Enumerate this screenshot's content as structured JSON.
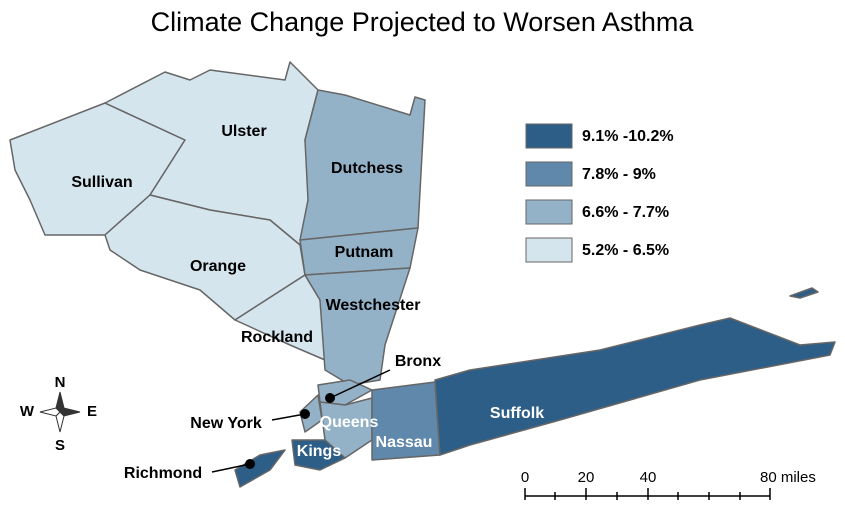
{
  "title": "Climate Change Projected to Worsen Asthma",
  "legend": [
    {
      "label": "9.1% -10.2%",
      "color": "#2d5e87"
    },
    {
      "label": "7.8% - 9%",
      "color": "#5f88aa"
    },
    {
      "label": "6.6% - 7.7%",
      "color": "#94b2c7"
    },
    {
      "label": "5.2% - 6.5%",
      "color": "#d5e5ee"
    }
  ],
  "counties": [
    {
      "name": "Sullivan",
      "color": "#d5e5ee"
    },
    {
      "name": "Ulster",
      "color": "#d5e5ee"
    },
    {
      "name": "Orange",
      "color": "#d5e5ee"
    },
    {
      "name": "Rockland",
      "color": "#d5e5ee"
    },
    {
      "name": "Dutchess",
      "color": "#94b2c7"
    },
    {
      "name": "Putnam",
      "color": "#94b2c7"
    },
    {
      "name": "Westchester",
      "color": "#94b2c7"
    },
    {
      "name": "Bronx",
      "color": "#94b2c7"
    },
    {
      "name": "New York",
      "color": "#94b2c7"
    },
    {
      "name": "Queens",
      "color": "#94b2c7"
    },
    {
      "name": "Kings",
      "color": "#2d5e87"
    },
    {
      "name": "Nassau",
      "color": "#5f88aa"
    },
    {
      "name": "Suffolk",
      "color": "#2d5e87"
    },
    {
      "name": "Richmond",
      "color": "#2d5e87"
    }
  ],
  "compass": {
    "north": "N",
    "south": "S",
    "west": "W",
    "east": "E"
  },
  "scale_bar": {
    "labels": [
      "0",
      "20",
      "40",
      "80 miles"
    ]
  }
}
